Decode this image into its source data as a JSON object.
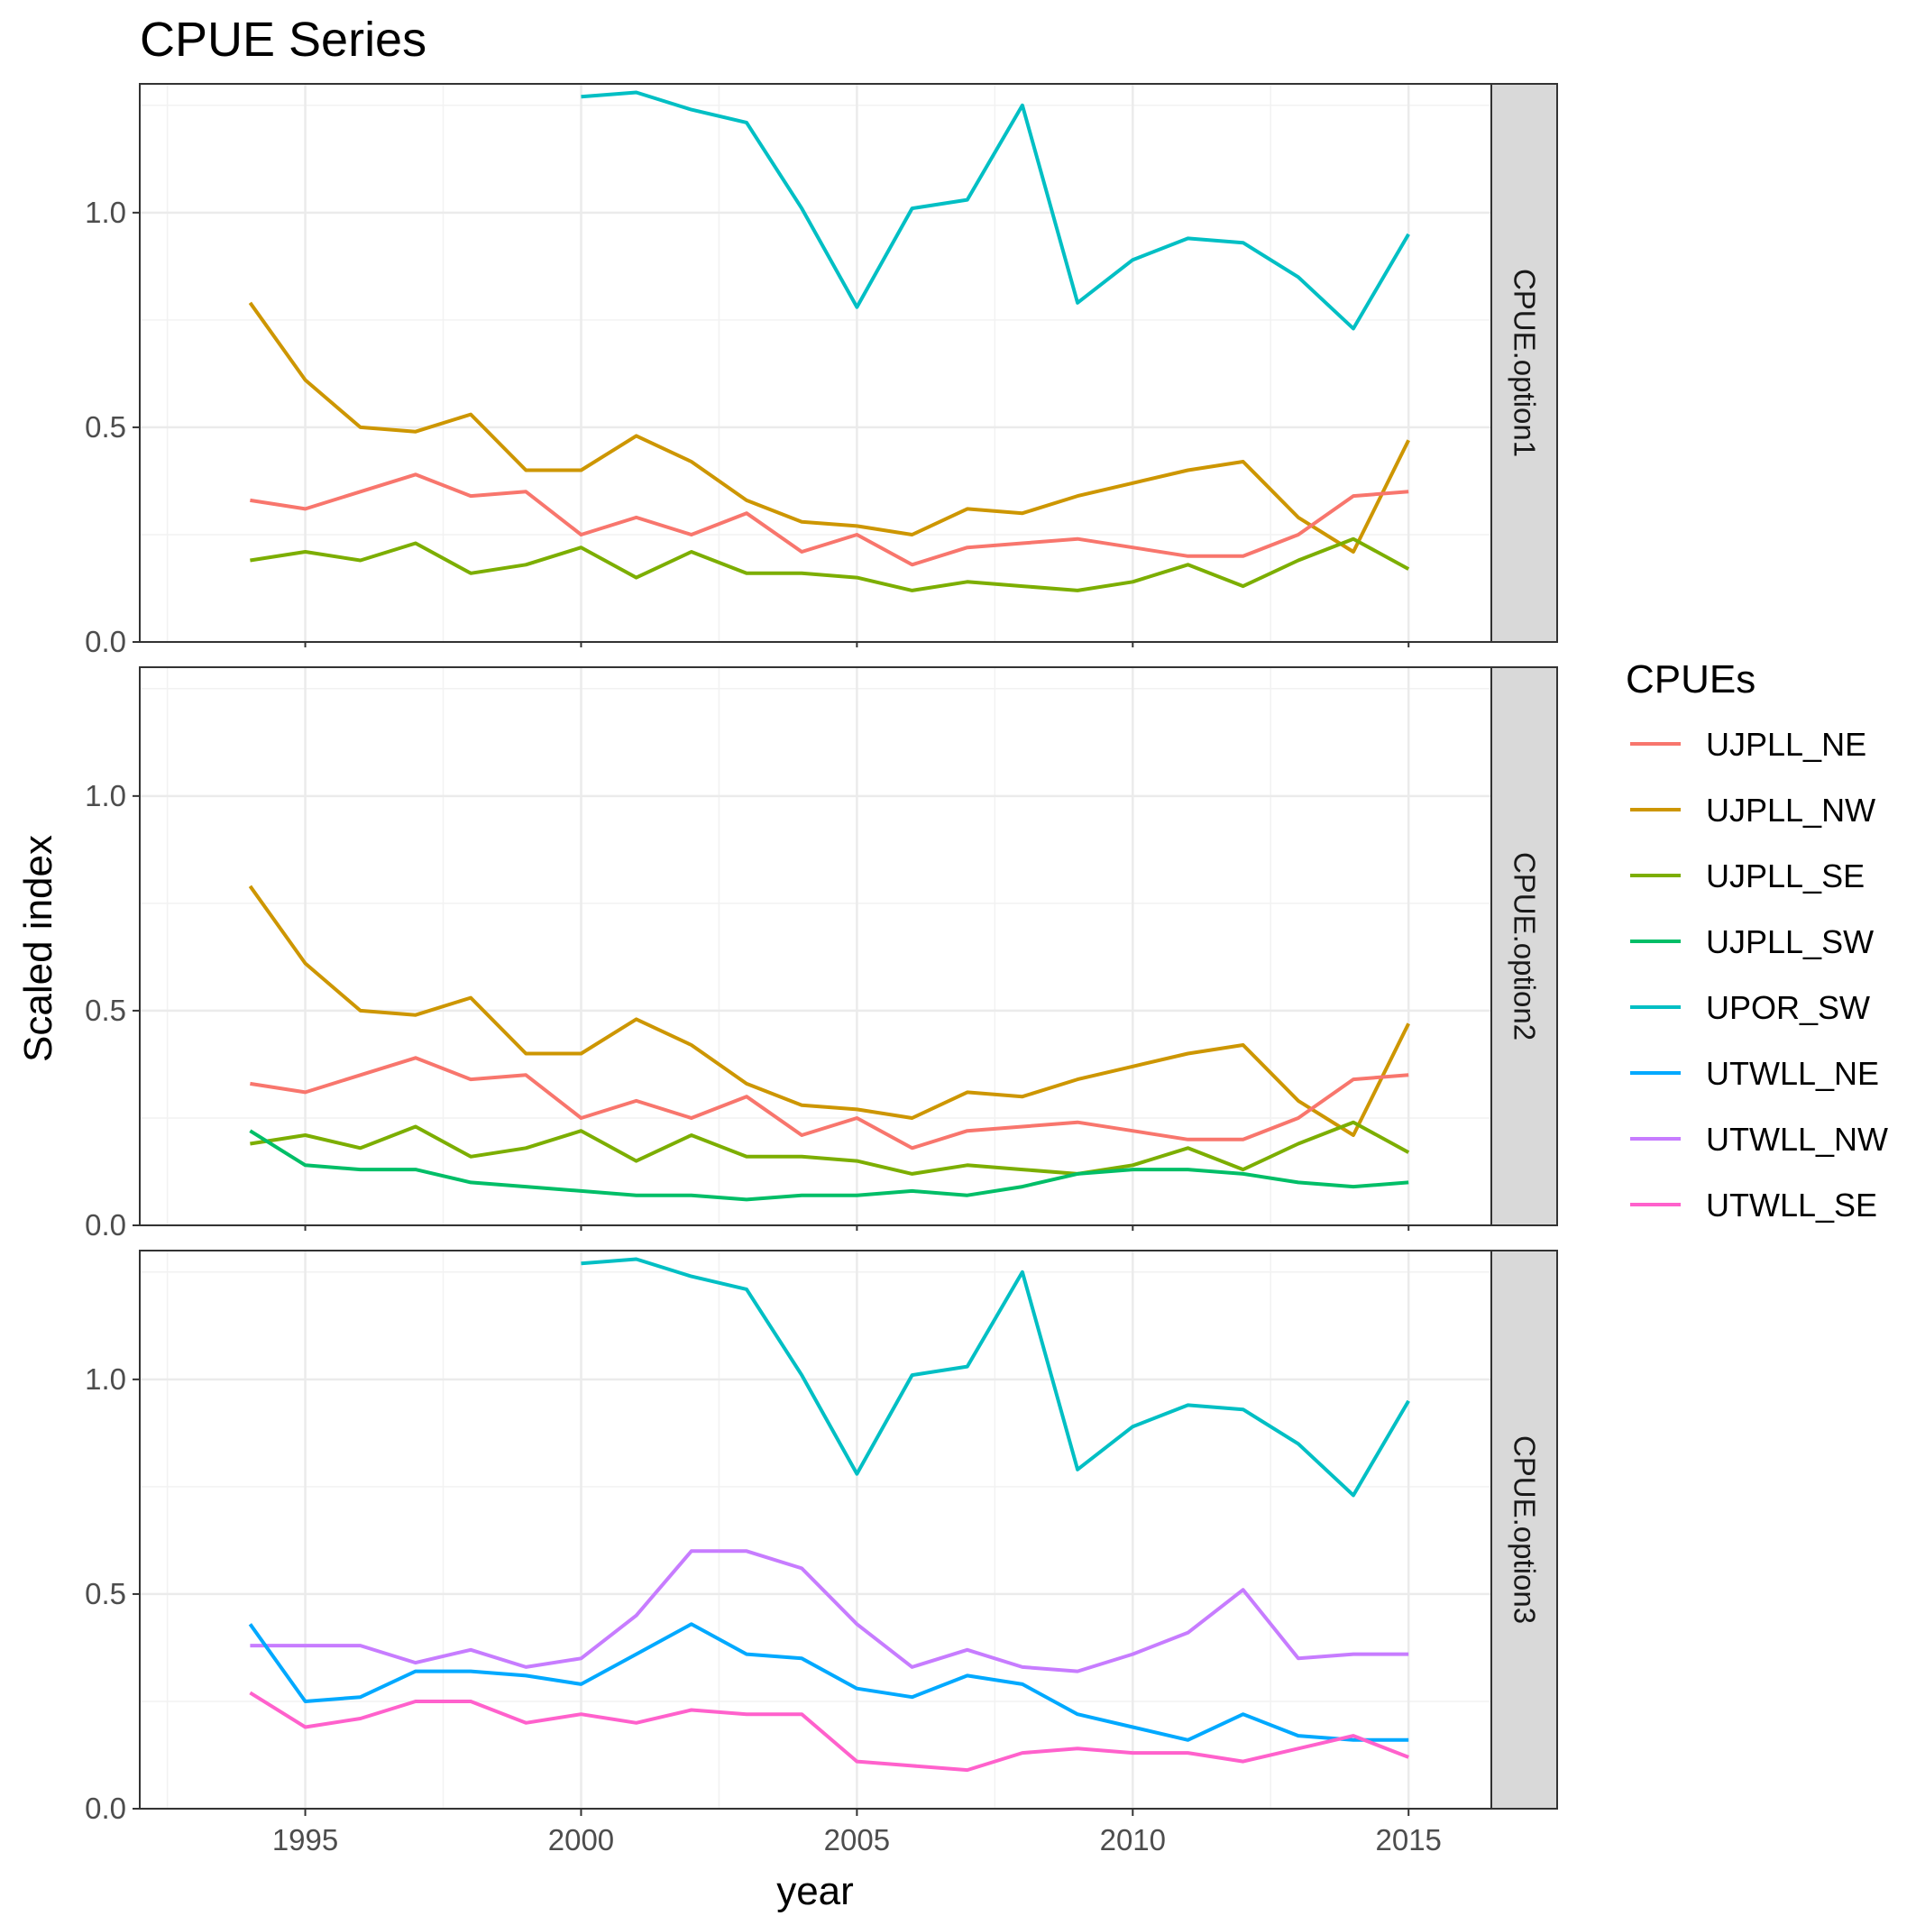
{
  "chart_data": {
    "type": "line",
    "title": "CPUE Series",
    "xlabel": "year",
    "ylabel": "Scaled index",
    "xlim": [
      1992,
      2016.5
    ],
    "ylim": [
      0,
      1.3
    ],
    "x_ticks": [
      1995,
      2000,
      2005,
      2010,
      2015
    ],
    "y_ticks": [
      0.0,
      0.5,
      1.0
    ],
    "y_tick_labels": [
      "0.0",
      "0.5",
      "1.0"
    ],
    "grid": true,
    "legend": {
      "title": "CPUEs",
      "position": "right"
    },
    "series_styles": [
      {
        "name": "UJPLL_NE",
        "color": "#F8766D"
      },
      {
        "name": "UJPLL_NW",
        "color": "#CD9600"
      },
      {
        "name": "UJPLL_SE",
        "color": "#7CAE00"
      },
      {
        "name": "UJPLL_SW",
        "color": "#00BE67"
      },
      {
        "name": "UPOR_SW",
        "color": "#00BFC4"
      },
      {
        "name": "UTWLL_NE",
        "color": "#00A9FF"
      },
      {
        "name": "UTWLL_NW",
        "color": "#C77CFF"
      },
      {
        "name": "UTWLL_SE",
        "color": "#FF61CC"
      }
    ],
    "panels": [
      {
        "strip": "CPUE.option1",
        "series": [
          {
            "name": "UPOR_SW",
            "x": [
              2000,
              2001,
              2002,
              2003,
              2004,
              2005,
              2006,
              2007,
              2008,
              2009,
              2010,
              2011,
              2012,
              2013,
              2014,
              2015
            ],
            "y": [
              1.27,
              1.28,
              1.24,
              1.21,
              1.01,
              0.78,
              1.01,
              1.03,
              1.25,
              0.79,
              0.89,
              0.94,
              0.93,
              0.85,
              0.73,
              0.95
            ]
          },
          {
            "name": "UJPLL_NW",
            "x": [
              1994,
              1995,
              1996,
              1997,
              1998,
              1999,
              2000,
              2001,
              2002,
              2003,
              2004,
              2005,
              2006,
              2007,
              2008,
              2009,
              2010,
              2011,
              2012,
              2013,
              2014,
              2015
            ],
            "y": [
              0.79,
              0.61,
              0.5,
              0.49,
              0.53,
              0.4,
              0.4,
              0.48,
              0.42,
              0.33,
              0.28,
              0.27,
              0.25,
              0.31,
              0.3,
              0.34,
              0.37,
              0.4,
              0.42,
              0.29,
              0.21,
              0.47
            ]
          },
          {
            "name": "UJPLL_NE",
            "x": [
              1994,
              1995,
              1996,
              1997,
              1998,
              1999,
              2000,
              2001,
              2002,
              2003,
              2004,
              2005,
              2006,
              2007,
              2008,
              2009,
              2010,
              2011,
              2012,
              2013,
              2014,
              2015
            ],
            "y": [
              0.33,
              0.31,
              0.35,
              0.39,
              0.34,
              0.35,
              0.25,
              0.29,
              0.25,
              0.3,
              0.21,
              0.25,
              0.18,
              0.22,
              0.23,
              0.24,
              0.22,
              0.2,
              0.2,
              0.25,
              0.34,
              0.35
            ]
          },
          {
            "name": "UJPLL_SE",
            "x": [
              1994,
              1995,
              1996,
              1997,
              1998,
              1999,
              2000,
              2001,
              2002,
              2003,
              2004,
              2005,
              2006,
              2007,
              2008,
              2009,
              2010,
              2011,
              2012,
              2013,
              2014,
              2015
            ],
            "y": [
              0.19,
              0.21,
              0.19,
              0.23,
              0.16,
              0.18,
              0.22,
              0.15,
              0.21,
              0.16,
              0.16,
              0.15,
              0.12,
              0.14,
              0.13,
              0.12,
              0.14,
              0.18,
              0.13,
              0.19,
              0.24,
              0.17
            ]
          }
        ]
      },
      {
        "strip": "CPUE.option2",
        "series": [
          {
            "name": "UJPLL_NW",
            "x": [
              1994,
              1995,
              1996,
              1997,
              1998,
              1999,
              2000,
              2001,
              2002,
              2003,
              2004,
              2005,
              2006,
              2007,
              2008,
              2009,
              2010,
              2011,
              2012,
              2013,
              2014,
              2015
            ],
            "y": [
              0.79,
              0.61,
              0.5,
              0.49,
              0.53,
              0.4,
              0.4,
              0.48,
              0.42,
              0.33,
              0.28,
              0.27,
              0.25,
              0.31,
              0.3,
              0.34,
              0.37,
              0.4,
              0.42,
              0.29,
              0.21,
              0.47
            ]
          },
          {
            "name": "UJPLL_NE",
            "x": [
              1994,
              1995,
              1996,
              1997,
              1998,
              1999,
              2000,
              2001,
              2002,
              2003,
              2004,
              2005,
              2006,
              2007,
              2008,
              2009,
              2010,
              2011,
              2012,
              2013,
              2014,
              2015
            ],
            "y": [
              0.33,
              0.31,
              0.35,
              0.39,
              0.34,
              0.35,
              0.25,
              0.29,
              0.25,
              0.3,
              0.21,
              0.25,
              0.18,
              0.22,
              0.23,
              0.24,
              0.22,
              0.2,
              0.2,
              0.25,
              0.34,
              0.35
            ]
          },
          {
            "name": "UJPLL_SE",
            "x": [
              1994,
              1995,
              1996,
              1997,
              1998,
              1999,
              2000,
              2001,
              2002,
              2003,
              2004,
              2005,
              2006,
              2007,
              2008,
              2009,
              2010,
              2011,
              2012,
              2013,
              2014,
              2015
            ],
            "y": [
              0.19,
              0.21,
              0.18,
              0.23,
              0.16,
              0.18,
              0.22,
              0.15,
              0.21,
              0.16,
              0.16,
              0.15,
              0.12,
              0.14,
              0.13,
              0.12,
              0.14,
              0.18,
              0.13,
              0.19,
              0.24,
              0.17
            ]
          },
          {
            "name": "UJPLL_SW",
            "x": [
              1994,
              1995,
              1996,
              1997,
              1998,
              1999,
              2000,
              2001,
              2002,
              2003,
              2004,
              2005,
              2006,
              2007,
              2008,
              2009,
              2010,
              2011,
              2012,
              2013,
              2014,
              2015
            ],
            "y": [
              0.22,
              0.14,
              0.13,
              0.13,
              0.1,
              0.09,
              0.08,
              0.07,
              0.07,
              0.06,
              0.07,
              0.07,
              0.08,
              0.07,
              0.09,
              0.12,
              0.13,
              0.13,
              0.12,
              0.1,
              0.09,
              0.1
            ]
          }
        ]
      },
      {
        "strip": "CPUE.option3",
        "series": [
          {
            "name": "UPOR_SW",
            "x": [
              2000,
              2001,
              2002,
              2003,
              2004,
              2005,
              2006,
              2007,
              2008,
              2009,
              2010,
              2011,
              2012,
              2013,
              2014,
              2015
            ],
            "y": [
              1.27,
              1.28,
              1.24,
              1.21,
              1.01,
              0.78,
              1.01,
              1.03,
              1.25,
              0.79,
              0.89,
              0.94,
              0.93,
              0.85,
              0.73,
              0.95
            ]
          },
          {
            "name": "UTWLL_NW",
            "x": [
              1994,
              1995,
              1996,
              1997,
              1998,
              1999,
              2000,
              2001,
              2002,
              2003,
              2004,
              2005,
              2006,
              2007,
              2008,
              2009,
              2010,
              2011,
              2012,
              2013,
              2014,
              2015
            ],
            "y": [
              0.38,
              0.38,
              0.38,
              0.34,
              0.37,
              0.33,
              0.35,
              0.45,
              0.6,
              0.6,
              0.56,
              0.43,
              0.33,
              0.37,
              0.33,
              0.32,
              0.36,
              0.41,
              0.51,
              0.35,
              0.36,
              0.36
            ]
          },
          {
            "name": "UTWLL_NE",
            "x": [
              1994,
              1995,
              1996,
              1997,
              1998,
              1999,
              2000,
              2001,
              2002,
              2003,
              2004,
              2005,
              2006,
              2007,
              2008,
              2009,
              2010,
              2011,
              2012,
              2013,
              2014,
              2015
            ],
            "y": [
              0.43,
              0.25,
              0.26,
              0.32,
              0.32,
              0.31,
              0.29,
              0.36,
              0.43,
              0.36,
              0.35,
              0.28,
              0.26,
              0.31,
              0.29,
              0.22,
              0.19,
              0.16,
              0.22,
              0.17,
              0.16,
              0.16
            ]
          },
          {
            "name": "UTWLL_SE",
            "x": [
              1994,
              1995,
              1996,
              1997,
              1998,
              1999,
              2000,
              2001,
              2002,
              2003,
              2004,
              2005,
              2006,
              2007,
              2008,
              2009,
              2010,
              2011,
              2012,
              2013,
              2014,
              2015
            ],
            "y": [
              0.27,
              0.19,
              0.21,
              0.25,
              0.25,
              0.2,
              0.22,
              0.2,
              0.23,
              0.22,
              0.22,
              0.11,
              0.1,
              0.09,
              0.13,
              0.14,
              0.13,
              0.13,
              0.11,
              0.14,
              0.17,
              0.12
            ]
          }
        ]
      }
    ]
  }
}
